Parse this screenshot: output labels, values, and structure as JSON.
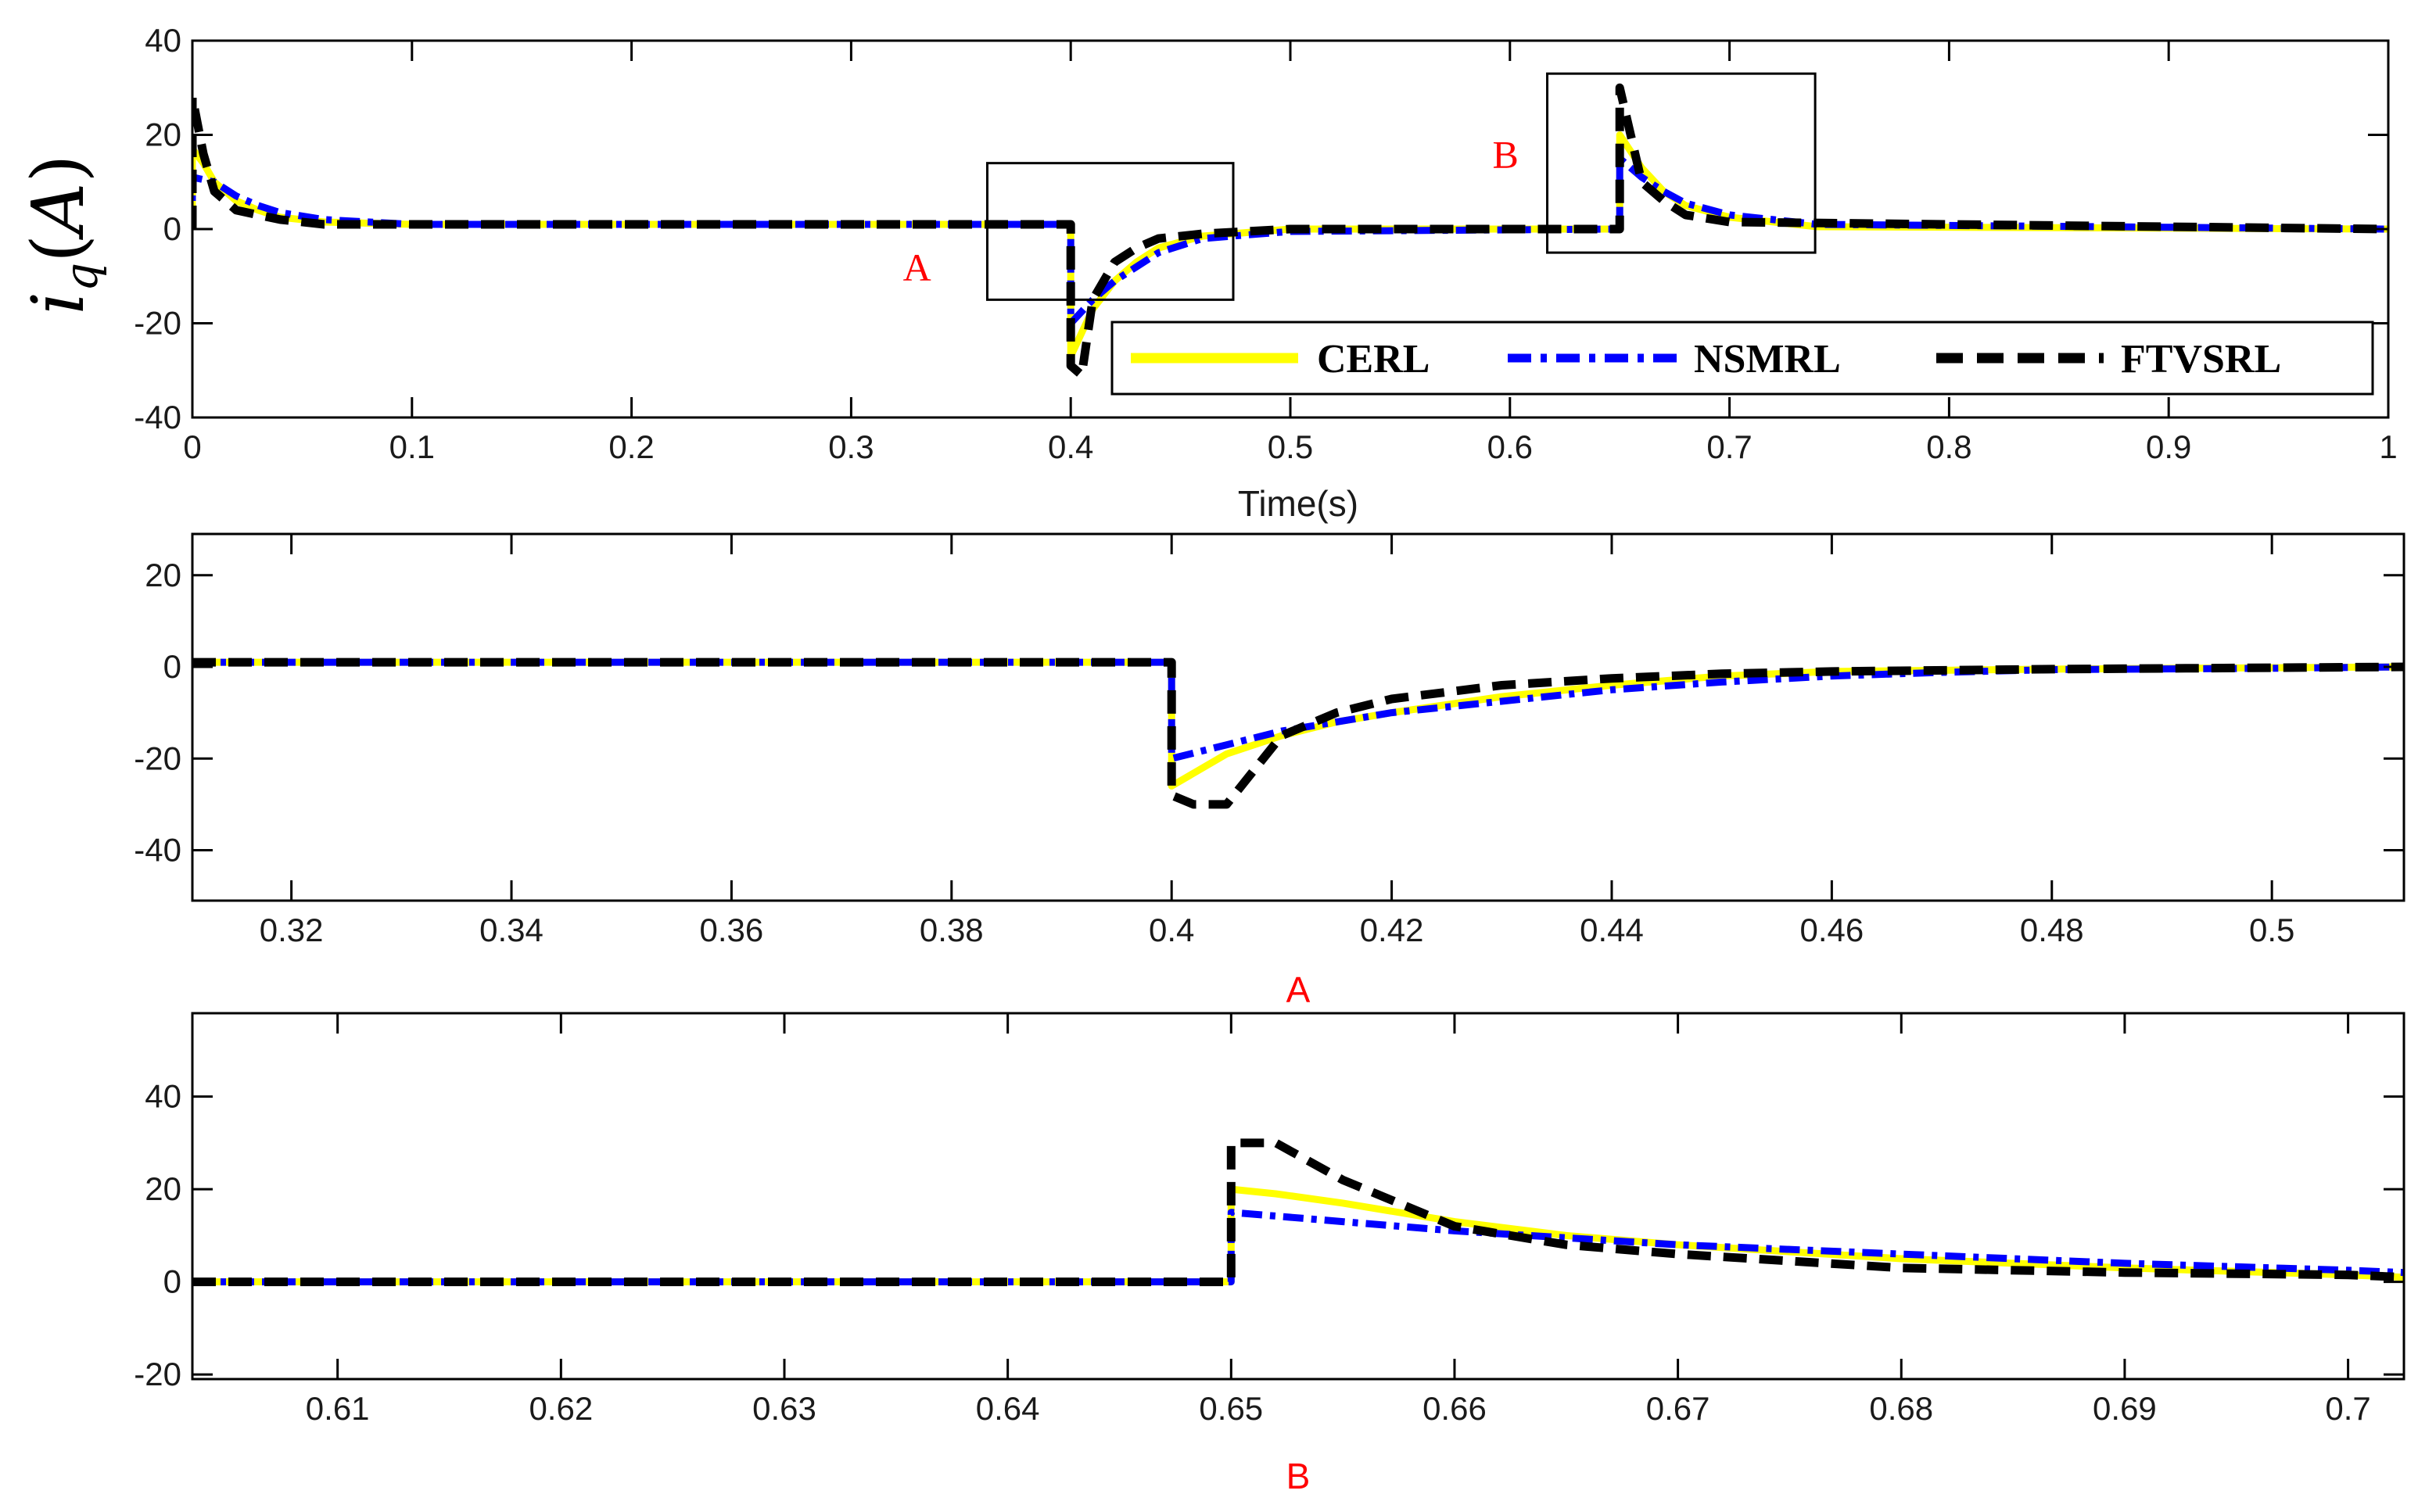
{
  "chart_data": [
    {
      "type": "line",
      "panel": "main",
      "ylabel": {
        "symbol": "i",
        "subscript": "q",
        "lparen": "(",
        "unit": "A",
        "rparen": ")"
      },
      "xlabel": "Time(s)",
      "xlim": [
        0,
        1
      ],
      "ylim": [
        -40,
        40
      ],
      "xticks": [
        0,
        0.1,
        0.2,
        0.3,
        0.4,
        0.5,
        0.6,
        0.7,
        0.8,
        0.9,
        1
      ],
      "xtick_labels": [
        "0",
        "0.1",
        "0.2",
        "0.3",
        "0.4",
        "0.5",
        "0.6",
        "0.7",
        "0.8",
        "0.9",
        "1"
      ],
      "yticks": [
        -40,
        -20,
        0,
        20,
        40
      ],
      "ytick_labels": [
        "-40",
        "-20",
        "0",
        "20",
        "40"
      ],
      "grid": false,
      "legend": {
        "position": "bottom-right",
        "entries": [
          "CERL",
          "NSMRL",
          "FTVSRL"
        ]
      },
      "annotations": [
        {
          "text": "A",
          "x": 0.33,
          "y": -8
        },
        {
          "text": "B",
          "x": 0.598,
          "y": 16
        }
      ],
      "zoom_boxes": [
        {
          "label": "A",
          "x0": 0.362,
          "x1": 0.474,
          "y0": -15,
          "y1": 14
        },
        {
          "label": "B",
          "x0": 0.617,
          "x1": 0.739,
          "y0": -5,
          "y1": 33
        }
      ],
      "series": [
        {
          "name": "CERL",
          "color": "#ffff00",
          "style": "solid",
          "points": [
            [
              0,
              0
            ],
            [
              0,
              17
            ],
            [
              0.005,
              14
            ],
            [
              0.01,
              10
            ],
            [
              0.02,
              6
            ],
            [
              0.03,
              4
            ],
            [
              0.04,
              2.5
            ],
            [
              0.06,
              1.5
            ],
            [
              0.1,
              1
            ],
            [
              0.4,
              1
            ],
            [
              0.4,
              -27
            ],
            [
              0.41,
              -17
            ],
            [
              0.42,
              -11
            ],
            [
              0.43,
              -7
            ],
            [
              0.44,
              -4
            ],
            [
              0.46,
              -1.5
            ],
            [
              0.5,
              0
            ],
            [
              0.65,
              0
            ],
            [
              0.65,
              20
            ],
            [
              0.66,
              13
            ],
            [
              0.67,
              8
            ],
            [
              0.68,
              5
            ],
            [
              0.7,
              2.5
            ],
            [
              0.74,
              0.5
            ],
            [
              1,
              0
            ]
          ]
        },
        {
          "name": "NSMRL",
          "color": "#0000ff",
          "style": "dashdot",
          "points": [
            [
              0,
              0
            ],
            [
              0,
              11
            ],
            [
              0.01,
              10
            ],
            [
              0.02,
              7
            ],
            [
              0.03,
              5
            ],
            [
              0.04,
              3.5
            ],
            [
              0.06,
              2
            ],
            [
              0.1,
              1
            ],
            [
              0.4,
              1
            ],
            [
              0.4,
              -20
            ],
            [
              0.41,
              -15
            ],
            [
              0.42,
              -11
            ],
            [
              0.43,
              -8
            ],
            [
              0.44,
              -5
            ],
            [
              0.46,
              -2
            ],
            [
              0.5,
              -0.5
            ],
            [
              0.65,
              0
            ],
            [
              0.65,
              15
            ],
            [
              0.66,
              11
            ],
            [
              0.67,
              8
            ],
            [
              0.68,
              5.5
            ],
            [
              0.7,
              3
            ],
            [
              0.74,
              1
            ],
            [
              1,
              0
            ]
          ]
        },
        {
          "name": "FTVSRL",
          "color": "#000000",
          "style": "dashed",
          "points": [
            [
              0,
              0
            ],
            [
              0,
              28
            ],
            [
              0.005,
              16
            ],
            [
              0.01,
              8
            ],
            [
              0.02,
              4
            ],
            [
              0.04,
              2
            ],
            [
              0.06,
              1
            ],
            [
              0.1,
              1
            ],
            [
              0.4,
              1
            ],
            [
              0.4,
              -29
            ],
            [
              0.405,
              -31
            ],
            [
              0.41,
              -15
            ],
            [
              0.42,
              -7
            ],
            [
              0.43,
              -4
            ],
            [
              0.44,
              -2
            ],
            [
              0.46,
              -1
            ],
            [
              0.5,
              0
            ],
            [
              0.65,
              0
            ],
            [
              0.65,
              30
            ],
            [
              0.655,
              20
            ],
            [
              0.66,
              10
            ],
            [
              0.67,
              6
            ],
            [
              0.68,
              3
            ],
            [
              0.7,
              1.5
            ],
            [
              1,
              0
            ]
          ]
        }
      ]
    },
    {
      "type": "line",
      "panel": "zoom-A",
      "xlabel": "A",
      "xlim": [
        0.311,
        0.512
      ],
      "ylim": [
        -51,
        29
      ],
      "xticks": [
        0.32,
        0.34,
        0.36,
        0.38,
        0.4,
        0.42,
        0.44,
        0.46,
        0.48,
        0.5
      ],
      "xtick_labels": [
        "0.32",
        "0.34",
        "0.36",
        "0.38",
        "0.4",
        "0.42",
        "0.44",
        "0.46",
        "0.48",
        "0.5"
      ],
      "yticks": [
        -40,
        -20,
        0,
        20
      ],
      "ytick_labels": [
        "-40",
        "-20",
        "0",
        "20"
      ],
      "grid": false,
      "series": [
        {
          "name": "CERL",
          "color": "#ffff00",
          "style": "solid",
          "points": [
            [
              0.311,
              1
            ],
            [
              0.4,
              1
            ],
            [
              0.4,
              -26
            ],
            [
              0.405,
              -19
            ],
            [
              0.41,
              -15
            ],
            [
              0.415,
              -12
            ],
            [
              0.42,
              -10
            ],
            [
              0.43,
              -6.5
            ],
            [
              0.44,
              -4
            ],
            [
              0.45,
              -2
            ],
            [
              0.46,
              -1
            ],
            [
              0.48,
              -0.5
            ],
            [
              0.512,
              0
            ]
          ]
        },
        {
          "name": "NSMRL",
          "color": "#0000ff",
          "style": "dashdot",
          "points": [
            [
              0.311,
              1
            ],
            [
              0.4,
              1
            ],
            [
              0.4,
              -20
            ],
            [
              0.405,
              -17
            ],
            [
              0.41,
              -14
            ],
            [
              0.415,
              -12
            ],
            [
              0.42,
              -10
            ],
            [
              0.43,
              -7.5
            ],
            [
              0.44,
              -5
            ],
            [
              0.45,
              -3.3
            ],
            [
              0.46,
              -2
            ],
            [
              0.47,
              -1.2
            ],
            [
              0.48,
              -0.6
            ],
            [
              0.5,
              -0.3
            ],
            [
              0.512,
              0
            ]
          ]
        },
        {
          "name": "FTVSRL",
          "color": "#000000",
          "style": "dashed",
          "points": [
            [
              0.311,
              1
            ],
            [
              0.4,
              1
            ],
            [
              0.4,
              -28
            ],
            [
              0.402,
              -30
            ],
            [
              0.405,
              -30
            ],
            [
              0.41,
              -15
            ],
            [
              0.415,
              -10
            ],
            [
              0.42,
              -7
            ],
            [
              0.43,
              -4
            ],
            [
              0.44,
              -2.5
            ],
            [
              0.45,
              -1.5
            ],
            [
              0.46,
              -1
            ],
            [
              0.48,
              -0.5
            ],
            [
              0.512,
              0
            ]
          ]
        }
      ]
    },
    {
      "type": "line",
      "panel": "zoom-B",
      "xlabel": "B",
      "xlim": [
        0.6035,
        0.7025
      ],
      "ylim": [
        -21,
        58
      ],
      "xticks": [
        0.61,
        0.62,
        0.63,
        0.64,
        0.65,
        0.66,
        0.67,
        0.68,
        0.69,
        0.7
      ],
      "xtick_labels": [
        "0.61",
        "0.62",
        "0.63",
        "0.64",
        "0.65",
        "0.66",
        "0.67",
        "0.68",
        "0.69",
        "0.7"
      ],
      "yticks": [
        -20,
        0,
        20,
        40
      ],
      "ytick_labels": [
        "-20",
        "0",
        "20",
        "40"
      ],
      "grid": false,
      "series": [
        {
          "name": "CERL",
          "color": "#ffff00",
          "style": "solid",
          "points": [
            [
              0.6035,
              0
            ],
            [
              0.65,
              0
            ],
            [
              0.65,
              20
            ],
            [
              0.652,
              19
            ],
            [
              0.655,
              17
            ],
            [
              0.66,
              13
            ],
            [
              0.665,
              10
            ],
            [
              0.67,
              8
            ],
            [
              0.68,
              5
            ],
            [
              0.69,
              3
            ],
            [
              0.7,
              1.5
            ],
            [
              0.7025,
              1
            ]
          ]
        },
        {
          "name": "NSMRL",
          "color": "#0000ff",
          "style": "dashdot",
          "points": [
            [
              0.6035,
              0
            ],
            [
              0.65,
              0
            ],
            [
              0.65,
              15
            ],
            [
              0.655,
              13
            ],
            [
              0.66,
              11
            ],
            [
              0.665,
              9.5
            ],
            [
              0.67,
              8
            ],
            [
              0.68,
              6
            ],
            [
              0.69,
              4
            ],
            [
              0.7,
              2.5
            ],
            [
              0.7025,
              2
            ]
          ]
        },
        {
          "name": "FTVSRL",
          "color": "#000000",
          "style": "dashed",
          "points": [
            [
              0.6035,
              0
            ],
            [
              0.65,
              0
            ],
            [
              0.65,
              30
            ],
            [
              0.652,
              30
            ],
            [
              0.655,
              22
            ],
            [
              0.66,
              12
            ],
            [
              0.665,
              8
            ],
            [
              0.67,
              6
            ],
            [
              0.675,
              4.5
            ],
            [
              0.68,
              3
            ],
            [
              0.69,
              2
            ],
            [
              0.7,
              1.5
            ],
            [
              0.7025,
              1
            ]
          ]
        }
      ]
    }
  ]
}
